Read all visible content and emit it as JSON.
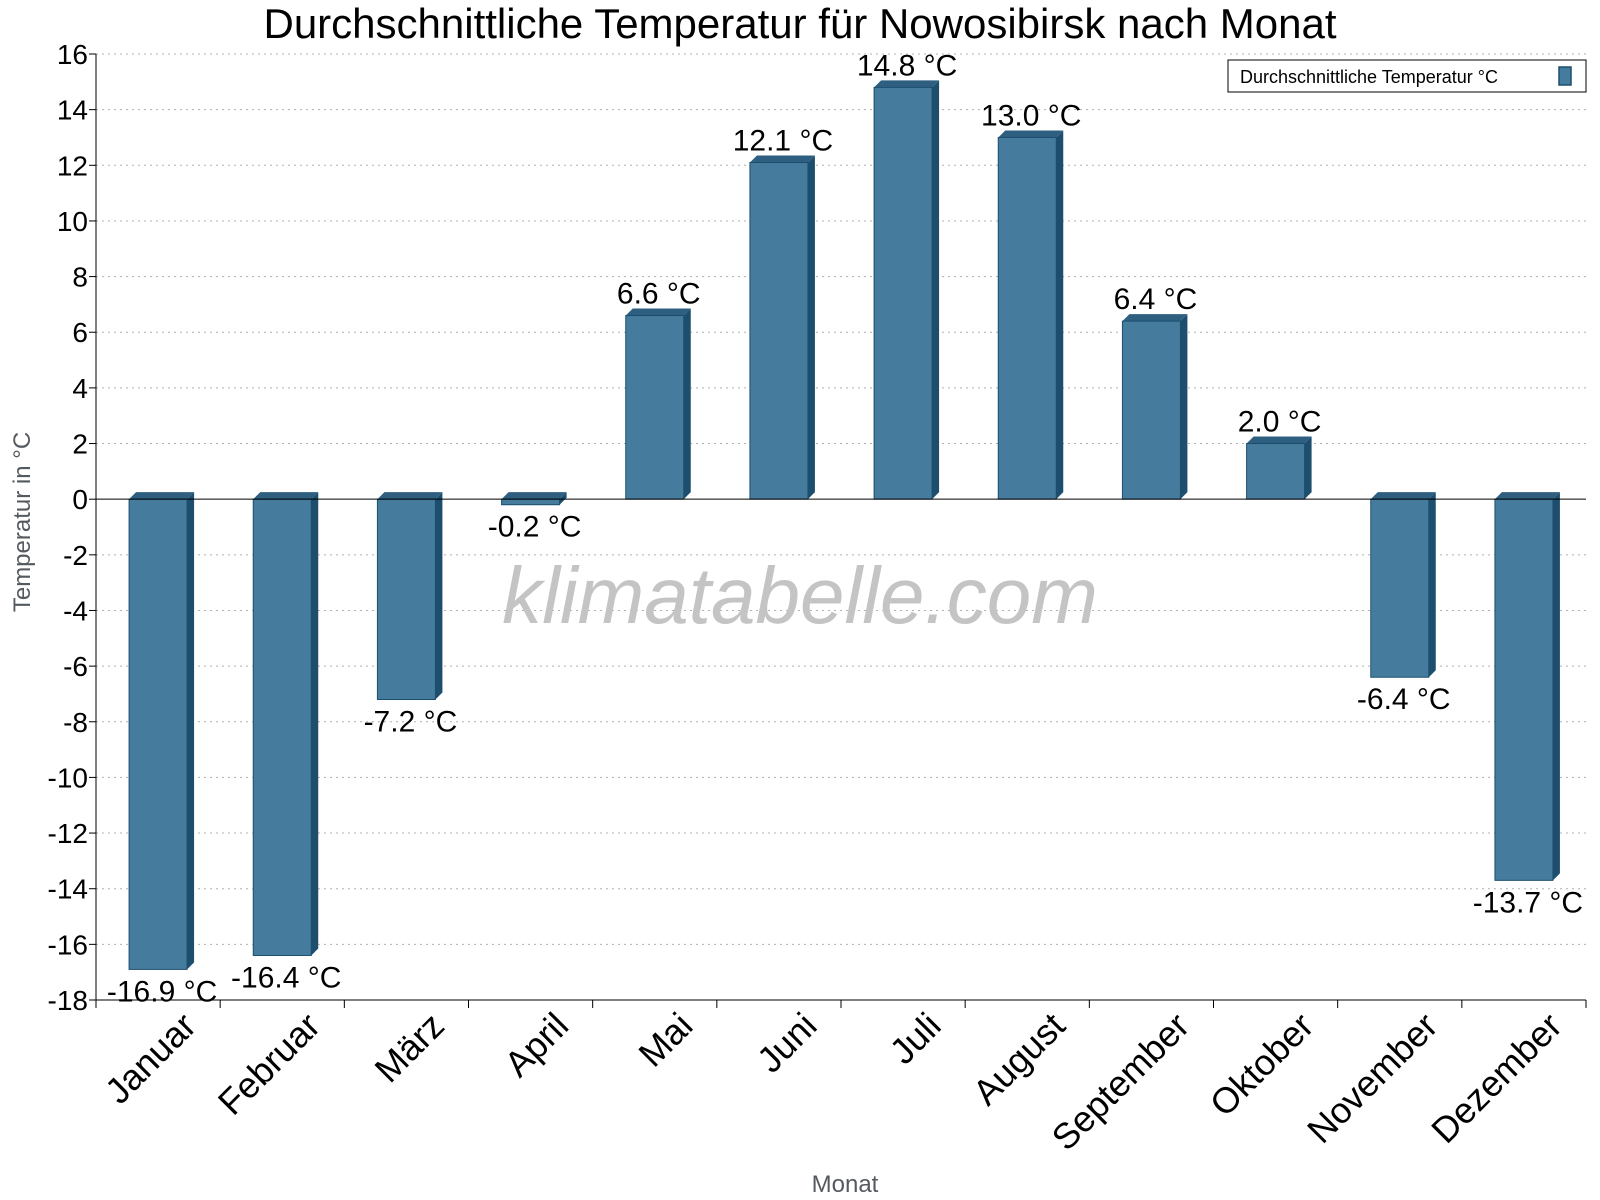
{
  "chart_data": {
    "type": "bar",
    "title": "Durchschnittliche Temperatur für Nowosibirsk nach Monat",
    "xlabel": "Monat",
    "ylabel": "Temperatur in °C",
    "categories": [
      "Januar",
      "Februar",
      "März",
      "April",
      "Mai",
      "Juni",
      "Juli",
      "August",
      "September",
      "Oktober",
      "November",
      "Dezember"
    ],
    "series": [
      {
        "name": "Durchschnittliche Temperatur °C",
        "values": [
          -16.9,
          -16.4,
          -7.2,
          -0.2,
          6.6,
          12.1,
          14.8,
          13.0,
          6.4,
          2.0,
          -6.4,
          -13.7
        ],
        "labels": [
          "-16.9 °C",
          "-16.4 °C",
          "-7.2 °C",
          "-0.2 °C",
          "6.6 °C",
          "12.1 °C",
          "14.8 °C",
          "13.0 °C",
          "6.4 °C",
          "2.0 °C",
          "-6.4 °C",
          "-13.7 °C"
        ]
      }
    ],
    "ylim": [
      -18,
      16
    ],
    "yticks": [
      16,
      14,
      12,
      10,
      8,
      6,
      4,
      2,
      0,
      -2,
      -4,
      -6,
      -8,
      -10,
      -12,
      -14,
      -16,
      -18
    ],
    "grid": true,
    "legend_position": "top-right"
  },
  "watermark": "klimatabelle.com",
  "colors": {
    "bar_face": "#457b9d",
    "bar_side": "#1d4e6e",
    "bar_top": "#2e5f80"
  }
}
